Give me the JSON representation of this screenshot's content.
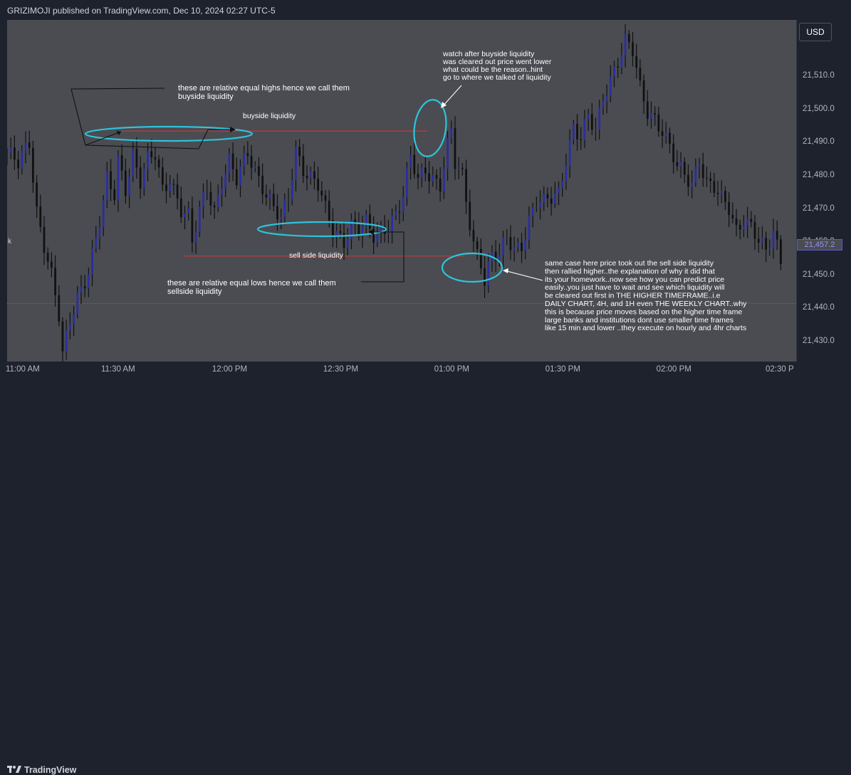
{
  "header": {
    "published_text": "GRIZIMOJI published on TradingView.com, Dec 10, 2024 02:27 UTC-5"
  },
  "axis": {
    "currency_button": "USD",
    "current_price": "21,457.2",
    "left_edge_label": "k"
  },
  "footer": {
    "brand": "TradingView"
  },
  "colors": {
    "background": "#4a4c51",
    "candle": "#2b2e9e",
    "candle_wick": "#111111",
    "annotation_cyan": "#2ec4dc",
    "level_red": "#c03a3a",
    "arrow_black": "#111111",
    "text_white": "#ffffff",
    "dotted_line": "#5d61d6"
  },
  "annotations": {
    "buyside_title": "buyside liquidity",
    "sellside_title": "sell side liquidity",
    "equal_highs_note": [
      "these are relative equal highs hence we call them",
      "buyside liquidity"
    ],
    "equal_lows_note": [
      "these are relative equal lows hence we call them",
      "sellside liquidity"
    ],
    "watch_note": [
      "watch after buyside liquidity",
      "was cleared out price went lower",
      "what could be the reason..hint",
      "go to where we talked of liquidity"
    ],
    "same_case_note": [
      "same case here price took out the sell side liquidity",
      "then rallied higher..the explanation of why it did that",
      "its your homework..now see how you can predict price",
      "easily..you just have to wait and see which liquidity will",
      "be cleared out first in THE HIGHER TIMEFRAME..i.e",
      "DAILY CHART, 4H, and 1H even THE WEEKLY CHART..why",
      "this is because price moves based on the higher time frame",
      "large banks and institutions dont use smaller time frames",
      "like 15 min and lower ..they execute on hourly and 4hr charts"
    ]
  },
  "chart_data": {
    "type": "candlestick",
    "title": "",
    "xlabel": "",
    "ylabel": "",
    "ylim": [
      21424,
      21527
    ],
    "x_tick_labels": [
      "11:00 AM",
      "11:30 AM",
      "12:00 PM",
      "12:30 PM",
      "01:00 PM",
      "01:30 PM",
      "02:00 PM",
      "02:30 P"
    ],
    "x_tick_minutes": [
      0,
      30,
      60,
      90,
      120,
      150,
      180,
      210
    ],
    "x_range_minutes": [
      0,
      212
    ],
    "y_ticks": [
      21430,
      21440,
      21450,
      21460,
      21470,
      21480,
      21490,
      21500,
      21510
    ],
    "y_tick_labels": [
      "21,430.0",
      "21,440.0",
      "21,450.0",
      "21,460.0",
      "21,470.0",
      "21,480.0",
      "21,490.0",
      "21,500.0",
      "21,510.0"
    ],
    "levels": {
      "buyside": 21493.5,
      "sellside": 21455.8,
      "dotted": 21441.5
    },
    "close_path": [
      [
        0,
        21487
      ],
      [
        3,
        21483
      ],
      [
        6,
        21490
      ],
      [
        8,
        21470
      ],
      [
        10,
        21460
      ],
      [
        12,
        21450
      ],
      [
        14,
        21437
      ],
      [
        15,
        21425
      ],
      [
        17,
        21436
      ],
      [
        19,
        21444
      ],
      [
        22,
        21452
      ],
      [
        24,
        21461
      ],
      [
        26,
        21471
      ],
      [
        27,
        21478
      ],
      [
        29,
        21474
      ],
      [
        30,
        21485
      ],
      [
        32,
        21477
      ],
      [
        34,
        21487
      ],
      [
        36,
        21478
      ],
      [
        38,
        21484
      ],
      [
        40,
        21486
      ],
      [
        42,
        21476
      ],
      [
        44,
        21480
      ],
      [
        47,
        21470
      ],
      [
        49,
        21467
      ],
      [
        50,
        21459
      ],
      [
        52,
        21469
      ],
      [
        54,
        21477
      ],
      [
        56,
        21470
      ],
      [
        58,
        21479
      ],
      [
        60,
        21484
      ],
      [
        62,
        21478
      ],
      [
        65,
        21487
      ],
      [
        68,
        21480
      ],
      [
        70,
        21475
      ],
      [
        72,
        21470
      ],
      [
        74,
        21466
      ],
      [
        76,
        21473
      ],
      [
        78,
        21488
      ],
      [
        80,
        21483
      ],
      [
        82,
        21480
      ],
      [
        84,
        21477
      ],
      [
        86,
        21469
      ],
      [
        88,
        21463
      ],
      [
        91,
        21461
      ],
      [
        93,
        21466
      ],
      [
        95,
        21464
      ],
      [
        97,
        21465
      ],
      [
        99,
        21461
      ],
      [
        101,
        21463
      ],
      [
        103,
        21466
      ],
      [
        105,
        21469
      ],
      [
        107,
        21474
      ],
      [
        109,
        21485
      ],
      [
        111,
        21478
      ],
      [
        113,
        21482
      ],
      [
        115,
        21480
      ],
      [
        117,
        21478
      ],
      [
        119,
        21489
      ],
      [
        120,
        21493
      ],
      [
        121,
        21483
      ],
      [
        123,
        21479
      ],
      [
        125,
        21466
      ],
      [
        126,
        21460
      ],
      [
        128,
        21455
      ],
      [
        129,
        21449
      ],
      [
        131,
        21456
      ],
      [
        133,
        21455
      ],
      [
        135,
        21461
      ],
      [
        137,
        21458
      ],
      [
        139,
        21460
      ],
      [
        141,
        21467
      ],
      [
        143,
        21472
      ],
      [
        145,
        21471
      ],
      [
        147,
        21473
      ],
      [
        149,
        21475
      ],
      [
        151,
        21486
      ],
      [
        153,
        21495
      ],
      [
        155,
        21491
      ],
      [
        157,
        21497
      ],
      [
        159,
        21493
      ],
      [
        161,
        21504
      ],
      [
        163,
        21510
      ],
      [
        165,
        21515
      ],
      [
        167,
        21520
      ],
      [
        169,
        21517
      ],
      [
        171,
        21506
      ],
      [
        173,
        21500
      ],
      [
        175,
        21498
      ],
      [
        177,
        21494
      ],
      [
        179,
        21488
      ],
      [
        181,
        21482
      ],
      [
        183,
        21480
      ],
      [
        185,
        21478
      ],
      [
        187,
        21486
      ],
      [
        189,
        21478
      ],
      [
        191,
        21476
      ],
      [
        193,
        21472
      ],
      [
        195,
        21470
      ],
      [
        197,
        21464
      ],
      [
        199,
        21468
      ],
      [
        201,
        21465
      ],
      [
        203,
        21460
      ],
      [
        205,
        21456
      ],
      [
        207,
        21463
      ],
      [
        209,
        21455
      ]
    ]
  }
}
